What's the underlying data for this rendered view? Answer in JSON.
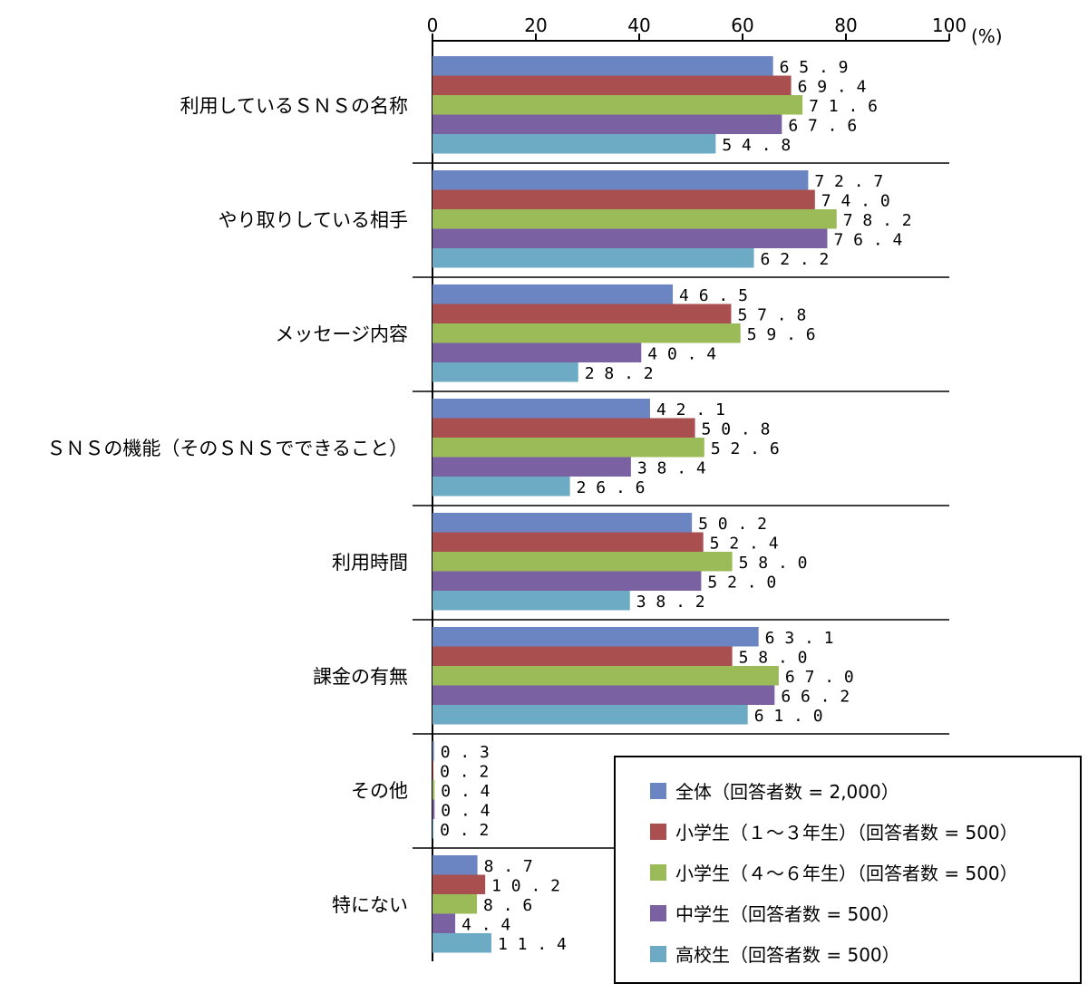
{
  "chart_data": {
    "type": "bar",
    "orientation": "horizontal",
    "unit": "(%)",
    "xlim": [
      0,
      100
    ],
    "ticks": [
      "0",
      "20",
      "40",
      "60",
      "80",
      "100"
    ],
    "categories": [
      "利用しているＳＮＳの名称",
      "やり取りしている相手",
      "メッセージ内容",
      "ＳＮＳの機能（そのＳＮＳでできること）",
      "利用時間",
      "課金の有無",
      "その他",
      "特にない"
    ],
    "series": [
      {
        "name": "全体（回答者数 = 2,000）",
        "color": "#6B84C2",
        "values": [
          65.9,
          72.7,
          46.5,
          42.1,
          50.2,
          63.1,
          0.3,
          8.7
        ],
        "labels": [
          "65.9",
          "72.7",
          "46.5",
          "42.1",
          "50.2",
          "63.1",
          "0.3",
          "8.7"
        ]
      },
      {
        "name": "小学生（１～３年生）（回答者数 = 500）",
        "color": "#A94F4F",
        "values": [
          69.4,
          74.0,
          57.8,
          50.8,
          52.4,
          58.0,
          0.2,
          10.2
        ],
        "labels": [
          "69.4",
          "74.0",
          "57.8",
          "50.8",
          "52.4",
          "58.0",
          "0.2",
          "10.2"
        ]
      },
      {
        "name": "小学生（４～６年生）（回答者数 = 500）",
        "color": "#9BBB59",
        "values": [
          71.6,
          78.2,
          59.6,
          52.6,
          58.0,
          67.0,
          0.4,
          8.6
        ],
        "labels": [
          "71.6",
          "78.2",
          "59.6",
          "52.6",
          "58.0",
          "67.0",
          "0.4",
          "8.6"
        ]
      },
      {
        "name": "中学生（回答者数 = 500）",
        "color": "#7A61A1",
        "values": [
          67.6,
          76.4,
          40.4,
          38.4,
          52.0,
          66.2,
          0.4,
          4.4
        ],
        "labels": [
          "67.6",
          "76.4",
          "40.4",
          "38.4",
          "52.0",
          "66.2",
          "0.4",
          "4.4"
        ]
      },
      {
        "name": "高校生（回答者数 = 500）",
        "color": "#6DABC4",
        "values": [
          54.8,
          62.2,
          28.2,
          26.6,
          38.2,
          61.0,
          0.2,
          11.4
        ],
        "labels": [
          "54.8",
          "62.2",
          "28.2",
          "26.6",
          "38.2",
          "61.0",
          "0.2",
          "11.4"
        ]
      }
    ],
    "legend_position": "bottom-right",
    "grid": false
  }
}
